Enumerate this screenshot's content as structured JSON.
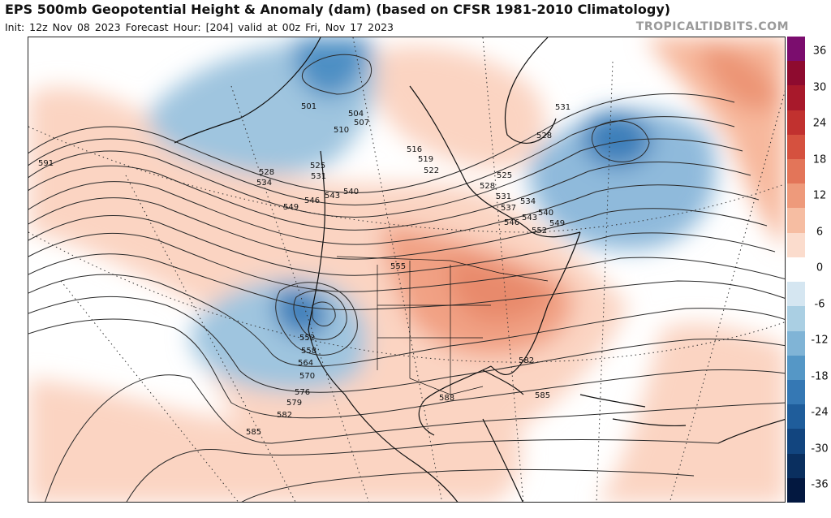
{
  "header": {
    "title": "EPS 500mb Geopotential Height & Anomaly (dam) (based on CFSR 1981-2010 Climatology)",
    "init": "Init: 12z Nov 08 2023",
    "forecast_hour": "Forecast Hour: [204]",
    "valid": "valid at 00z Fri, Nov 17 2023",
    "brand": "TROPICALTIDBITS.COM"
  },
  "colorbar": {
    "ticks": [
      "36",
      "30",
      "24",
      "18",
      "12",
      "6",
      "0",
      "-6",
      "-12",
      "-18",
      "-24",
      "-30",
      "-36"
    ],
    "colors": [
      "#7b0d6e",
      "#8e0b2f",
      "#a8192b",
      "#c1312f",
      "#d5513f",
      "#e37559",
      "#ee9a7b",
      "#f6bda2",
      "#fbdccd",
      "#ffffff",
      "#d5e6f1",
      "#aacfe3",
      "#80b4d6",
      "#5597c6",
      "#3578b4",
      "#1f5d9b",
      "#12457f",
      "#0a2f5f",
      "#031840"
    ]
  },
  "contour_labels": [
    "591",
    "501",
    "504",
    "507",
    "510",
    "516",
    "519",
    "522",
    "525",
    "528",
    "531",
    "534",
    "540",
    "543",
    "546",
    "549",
    "552",
    "555",
    "558",
    "564",
    "570",
    "576",
    "579",
    "582",
    "585",
    "588",
    "537"
  ],
  "map_labels": {
    "l591": "591",
    "l501": "501",
    "l504": "504",
    "l507": "507",
    "l510": "510",
    "l516": "516",
    "l519": "519",
    "l522": "522",
    "l525a": "525",
    "l525b": "525",
    "l528a": "528",
    "l528b": "528",
    "l528c": "528",
    "l531a": "531",
    "l531b": "531",
    "l531c": "531",
    "l534a": "534",
    "l534b": "534",
    "l540a": "540",
    "l540b": "540",
    "l543a": "543",
    "l543b": "543",
    "l546a": "546",
    "l546b": "546",
    "l549a": "549",
    "l549b": "549",
    "l537": "537",
    "l552a": "552",
    "l552b": "552",
    "l555": "555",
    "l558a": "558",
    "l564": "564",
    "l570": "570",
    "l576": "576",
    "l579": "579",
    "l582a": "582",
    "l582b": "582",
    "l585a": "585",
    "l585b": "585",
    "l588": "588"
  }
}
